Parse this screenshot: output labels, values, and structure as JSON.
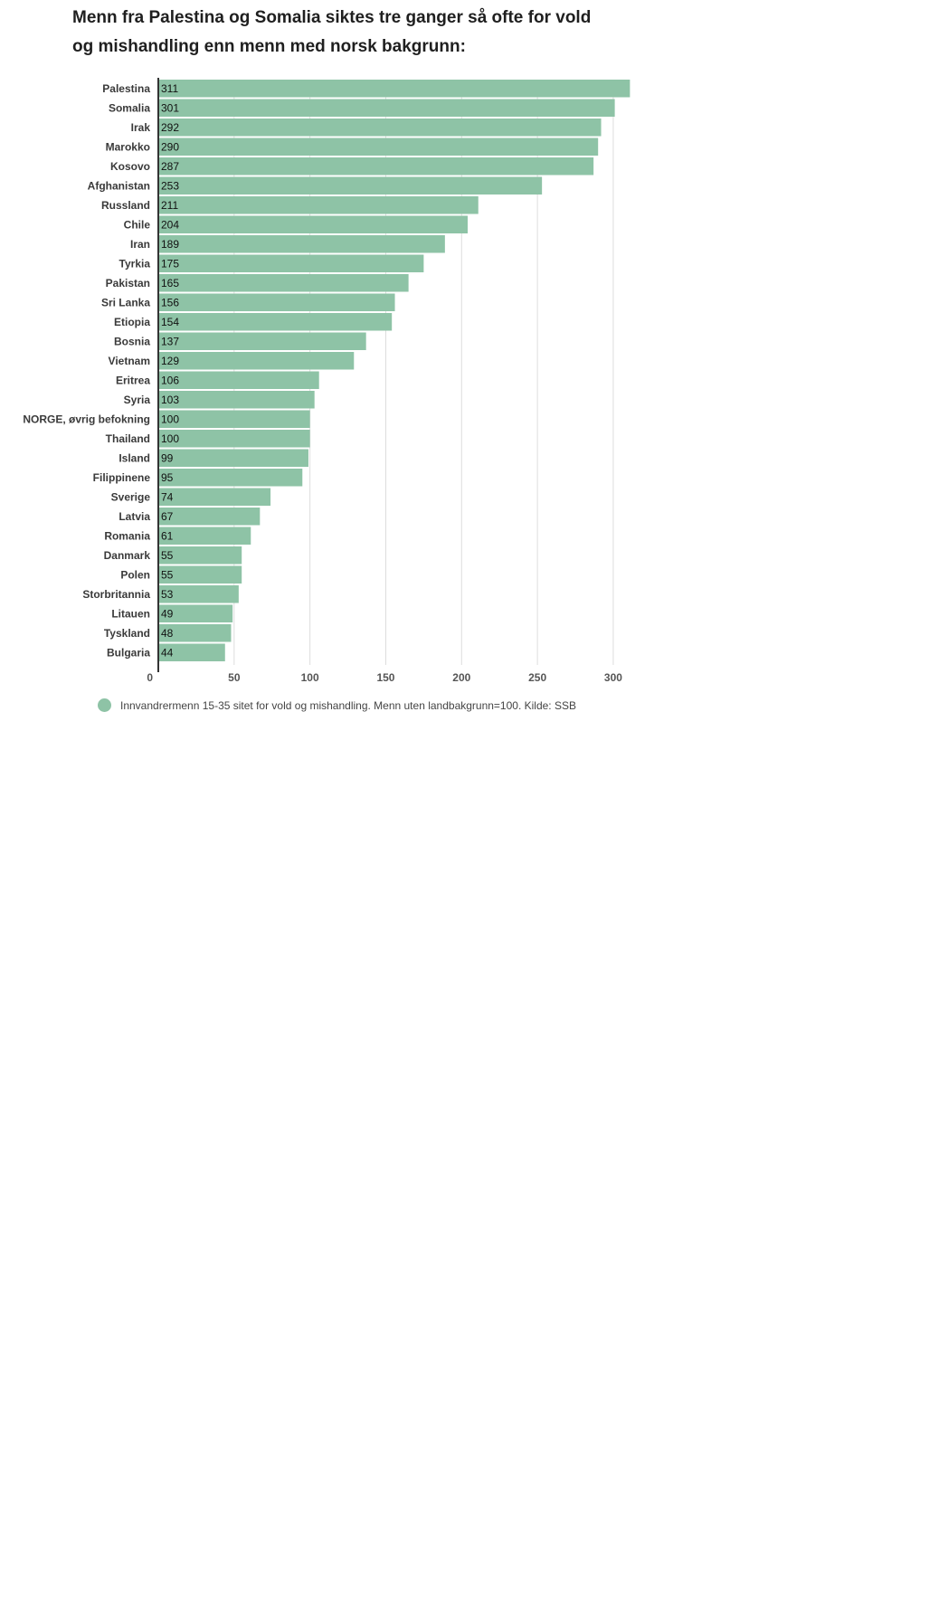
{
  "chart_data": {
    "type": "bar",
    "orientation": "horizontal",
    "title": "Menn fra Palestina og Somalia siktes tre ganger så ofte for vold og mishandling enn menn med norsk bakgrunn:",
    "categories": [
      "Palestina",
      "Somalia",
      "Irak",
      "Marokko",
      "Kosovo",
      "Afghanistan",
      "Russland",
      "Chile",
      "Iran",
      "Tyrkia",
      "Pakistan",
      "Sri Lanka",
      "Etiopia",
      "Bosnia",
      "Vietnam",
      "Eritrea",
      "Syria",
      "NORGE, øvrig befokning",
      "Thailand",
      "Island",
      "Filippinene",
      "Sverige",
      "Latvia",
      "Romania",
      "Danmark",
      "Polen",
      "Storbritannia",
      "Litauen",
      "Tyskland",
      "Bulgaria"
    ],
    "series": [
      {
        "name": "Innvandrermenn 15-35 sitet for vold og mishandling. Menn uten landbakgrunn=100. Kilde: SSB",
        "values": [
          311,
          301,
          292,
          290,
          287,
          253,
          211,
          204,
          189,
          175,
          165,
          156,
          154,
          137,
          129,
          106,
          103,
          100,
          100,
          99,
          95,
          74,
          67,
          61,
          55,
          55,
          53,
          49,
          48,
          44
        ],
        "color": "#8ec3a6"
      }
    ],
    "value_labels": [
      "311",
      "301",
      "292",
      "290",
      "287",
      "253",
      "211",
      "204",
      "189",
      "175",
      "165",
      "156",
      "154",
      "137",
      "129",
      "106",
      "103",
      "100",
      "100",
      "99",
      "95",
      "74",
      "67",
      "61",
      "55",
      "55",
      "53",
      "49",
      "48",
      "44"
    ],
    "xlim": [
      0,
      312
    ],
    "xticks": [
      0,
      50,
      100,
      150,
      200,
      250,
      300
    ],
    "xtick_labels": [
      "0",
      "50",
      "100",
      "150",
      "200",
      "250",
      "300"
    ],
    "grid": true,
    "legend_position": "bottom-left"
  }
}
